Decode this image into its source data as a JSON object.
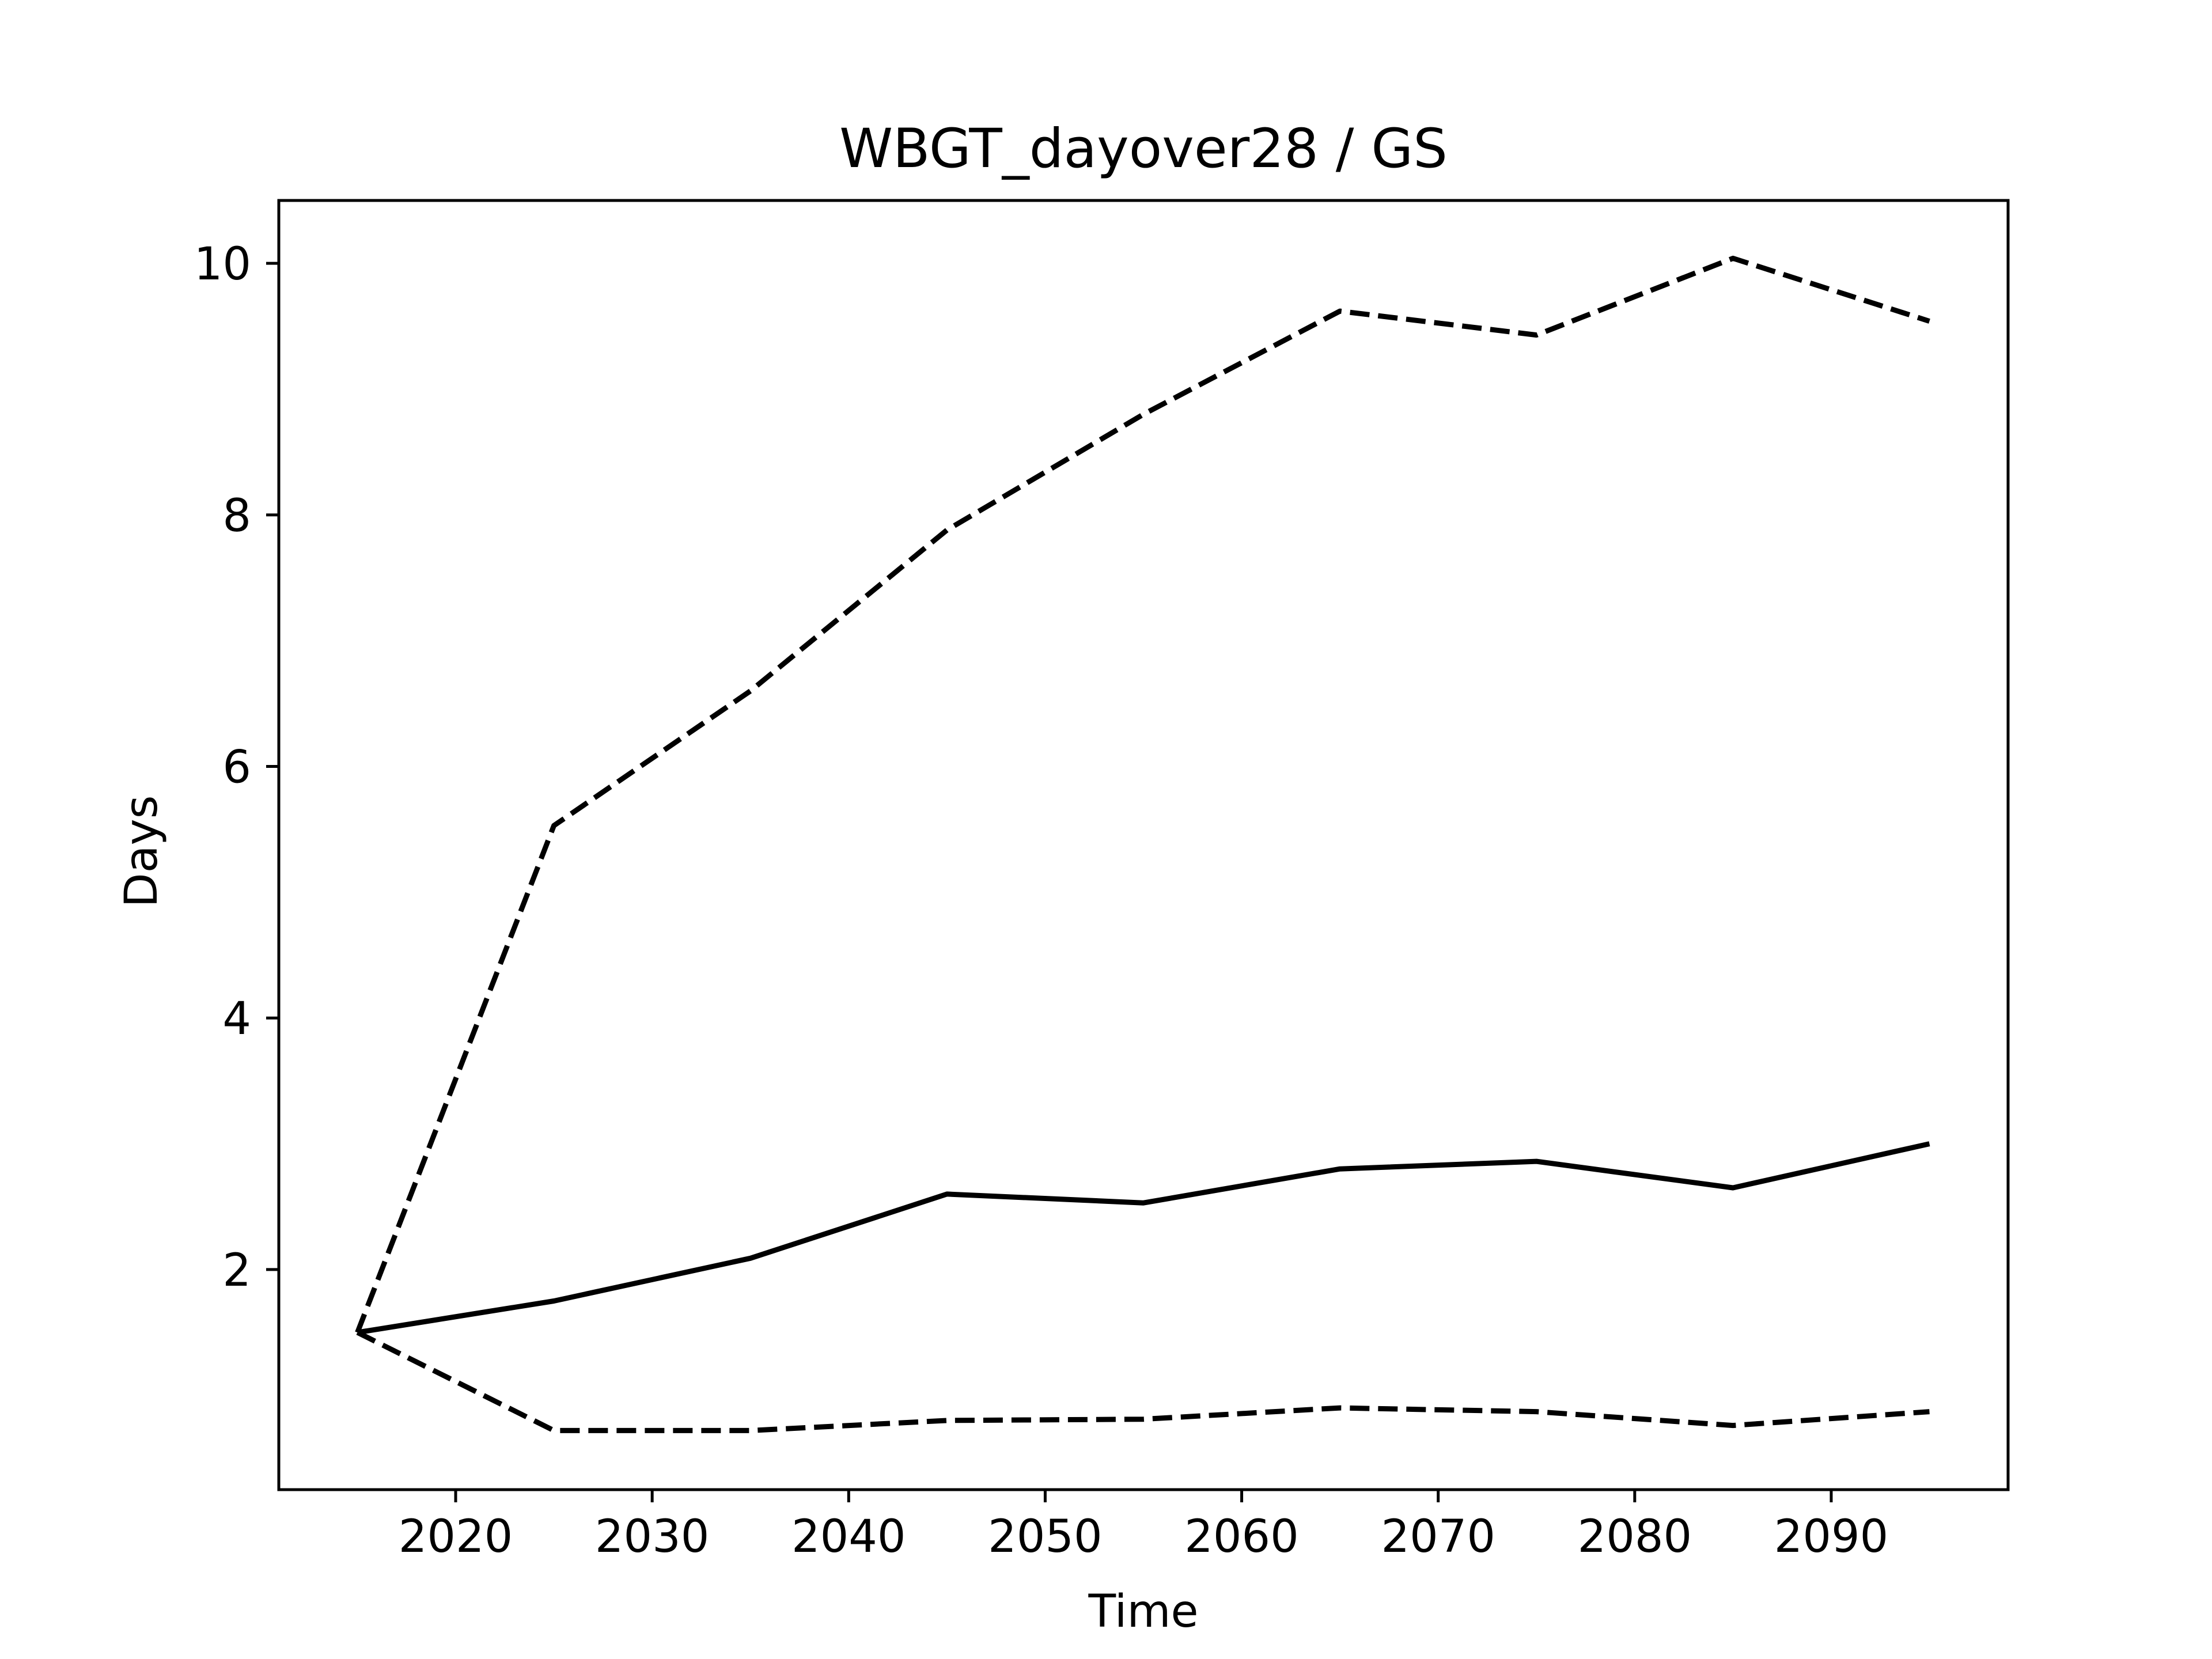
{
  "chart_data": {
    "type": "line",
    "title": "WBGT_dayover28 / GS",
    "xlabel": "Time",
    "ylabel": "Days",
    "x": [
      2015,
      2025,
      2035,
      2045,
      2055,
      2065,
      2075,
      2085,
      2095
    ],
    "xlim": [
      2011,
      2099
    ],
    "ylim": [
      0.25,
      10.5
    ],
    "xticks": [
      2020,
      2030,
      2040,
      2050,
      2060,
      2070,
      2080,
      2090
    ],
    "yticks": [
      2,
      4,
      6,
      8,
      10
    ],
    "grid": false,
    "legend": "none",
    "series": [
      {
        "style": "dashed",
        "color": "#000000",
        "values": [
          1.5,
          5.53,
          6.6,
          7.88,
          8.8,
          9.62,
          9.43,
          10.04,
          9.54
        ]
      },
      {
        "style": "solid",
        "color": "#000000",
        "values": [
          1.5,
          1.75,
          2.09,
          2.6,
          2.53,
          2.8,
          2.86,
          2.65,
          3.0
        ]
      },
      {
        "style": "dashed",
        "color": "#000000",
        "values": [
          1.5,
          0.72,
          0.72,
          0.8,
          0.81,
          0.9,
          0.87,
          0.76,
          0.87
        ]
      }
    ]
  }
}
